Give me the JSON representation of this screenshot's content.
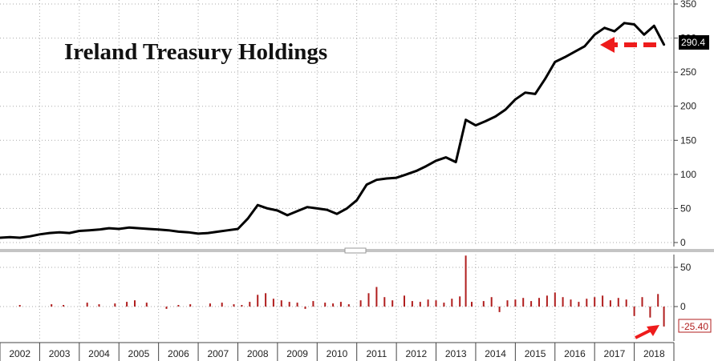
{
  "chart_data": [
    {
      "type": "line",
      "title": "Ireland Treasury Holdings",
      "ylim": [
        0,
        350
      ],
      "yticks": [
        0,
        50,
        100,
        150,
        200,
        250,
        300,
        350
      ],
      "xlim": [
        2002,
        2019
      ],
      "grid": true,
      "color": "#000000",
      "last_value_label": "290.4",
      "series": [
        {
          "x": [
            2002.0,
            2002.25,
            2002.5,
            2002.75,
            2003.0,
            2003.25,
            2003.5,
            2003.75,
            2004.0,
            2004.25,
            2004.5,
            2004.75,
            2005.0,
            2005.25,
            2005.5,
            2005.75,
            2006.0,
            2006.25,
            2006.5,
            2006.75,
            2007.0,
            2007.25,
            2007.5,
            2007.75,
            2008.0,
            2008.25,
            2008.5,
            2008.75,
            2009.0,
            2009.25,
            2009.5,
            2009.75,
            2010.0,
            2010.25,
            2010.5,
            2010.75,
            2011.0,
            2011.25,
            2011.5,
            2011.75,
            2012.0,
            2012.25,
            2012.5,
            2012.75,
            2013.0,
            2013.25,
            2013.5,
            2013.75,
            2014.0,
            2014.25,
            2014.5,
            2014.75,
            2015.0,
            2015.25,
            2015.5,
            2015.75,
            2016.0,
            2016.25,
            2016.5,
            2016.75,
            2017.0,
            2017.25,
            2017.5,
            2017.75,
            2018.0,
            2018.25,
            2018.5,
            2018.75
          ],
          "values": [
            7,
            8,
            7,
            9,
            12,
            14,
            15,
            14,
            17,
            18,
            19,
            21,
            20,
            22,
            21,
            20,
            19,
            18,
            16,
            15,
            13,
            14,
            16,
            18,
            20,
            35,
            55,
            50,
            47,
            40,
            46,
            52,
            50,
            48,
            42,
            50,
            62,
            85,
            92,
            94,
            95,
            100,
            105,
            112,
            120,
            125,
            118,
            180,
            172,
            178,
            185,
            195,
            210,
            220,
            218,
            240,
            265,
            272,
            280,
            288,
            305,
            315,
            310,
            322,
            320,
            305,
            318,
            290.4
          ]
        }
      ]
    },
    {
      "type": "bar",
      "ylim": [
        -35,
        70
      ],
      "yticks": [
        0,
        50
      ],
      "xlim": [
        2002,
        2019
      ],
      "color": "#b01e1e",
      "last_value_label": "-25.40",
      "x_categories": [
        "2002",
        "2003",
        "2004",
        "2005",
        "2006",
        "2007",
        "2008",
        "2009",
        "2010",
        "2011",
        "2012",
        "2013",
        "2014",
        "2015",
        "2016",
        "2017",
        "2018"
      ],
      "series": [
        {
          "x": [
            2002.5,
            2003.3,
            2003.6,
            2004.2,
            2004.5,
            2004.9,
            2005.2,
            2005.4,
            2005.7,
            2006.2,
            2006.5,
            2006.8,
            2007.3,
            2007.6,
            2007.9,
            2008.1,
            2008.3,
            2008.5,
            2008.7,
            2008.9,
            2009.1,
            2009.3,
            2009.5,
            2009.7,
            2009.9,
            2010.2,
            2010.4,
            2010.6,
            2010.8,
            2011.1,
            2011.3,
            2011.5,
            2011.7,
            2011.9,
            2012.2,
            2012.4,
            2012.6,
            2012.8,
            2013.0,
            2013.2,
            2013.4,
            2013.6,
            2013.75,
            2013.9,
            2014.2,
            2014.4,
            2014.6,
            2014.8,
            2015.0,
            2015.2,
            2015.4,
            2015.6,
            2015.8,
            2016.0,
            2016.2,
            2016.4,
            2016.6,
            2016.8,
            2017.0,
            2017.2,
            2017.4,
            2017.6,
            2017.8,
            2018.0,
            2018.2,
            2018.4,
            2018.6,
            2018.75
          ],
          "values": [
            2,
            3,
            2,
            5,
            3,
            4,
            6,
            8,
            5,
            -3,
            2,
            3,
            4,
            5,
            3,
            2,
            6,
            15,
            17,
            10,
            8,
            6,
            5,
            -3,
            7,
            5,
            4,
            6,
            3,
            8,
            17,
            25,
            12,
            8,
            14,
            7,
            6,
            9,
            8,
            5,
            10,
            13,
            65,
            6,
            7,
            12,
            -7,
            8,
            9,
            11,
            7,
            11,
            14,
            18,
            12,
            9,
            6,
            10,
            12,
            14,
            8,
            11,
            9,
            -12,
            12,
            -14,
            16,
            -25.4
          ]
        }
      ]
    }
  ]
}
